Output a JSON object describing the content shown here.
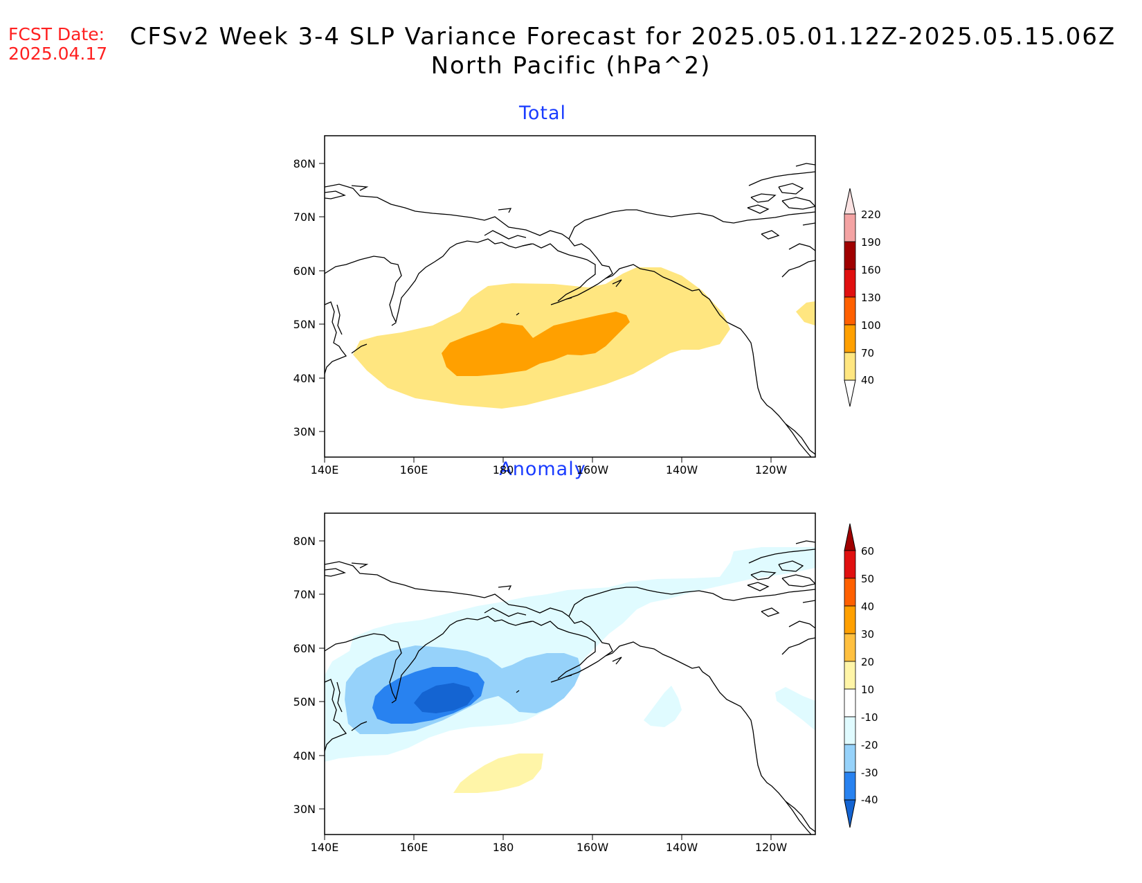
{
  "fcst_label": "FCST Date:",
  "fcst_date": "2025.04.17",
  "title_line1": "CFSv2 Week 3-4 SLP Variance Forecast for 2025.05.01.12Z-2025.05.15.06Z",
  "title_line2": "North Pacific (hPa^2)",
  "panels": [
    {
      "title": "Total",
      "lat_ticks": [
        "80N",
        "70N",
        "60N",
        "50N",
        "40N",
        "30N"
      ],
      "lon_ticks": [
        "140E",
        "160E",
        "180",
        "160W",
        "140W",
        "120W"
      ],
      "colorbar_labels": [
        "220",
        "190",
        "160",
        "130",
        "100",
        "70",
        "40"
      ],
      "colorbar_colors": [
        "#fbe2e2",
        "#f4a3a3",
        "#a00000",
        "#e01010",
        "#ff6000",
        "#ffa000",
        "#ffe680"
      ]
    },
    {
      "title": "Anomaly",
      "lat_ticks": [
        "80N",
        "70N",
        "60N",
        "50N",
        "40N",
        "30N"
      ],
      "lon_ticks": [
        "140E",
        "160E",
        "180",
        "160W",
        "140W",
        "120W"
      ],
      "colorbar_labels": [
        "60",
        "50",
        "40",
        "30",
        "20",
        "10",
        "-10",
        "-20",
        "-30",
        "-40"
      ],
      "colorbar_colors": [
        "#a00000",
        "#e01010",
        "#ff6000",
        "#ffa000",
        "#ffc040",
        "#fff5a8",
        "#ffffff",
        "#e0fbff",
        "#96d2fa",
        "#2882f0",
        "#1464d2"
      ]
    }
  ]
}
